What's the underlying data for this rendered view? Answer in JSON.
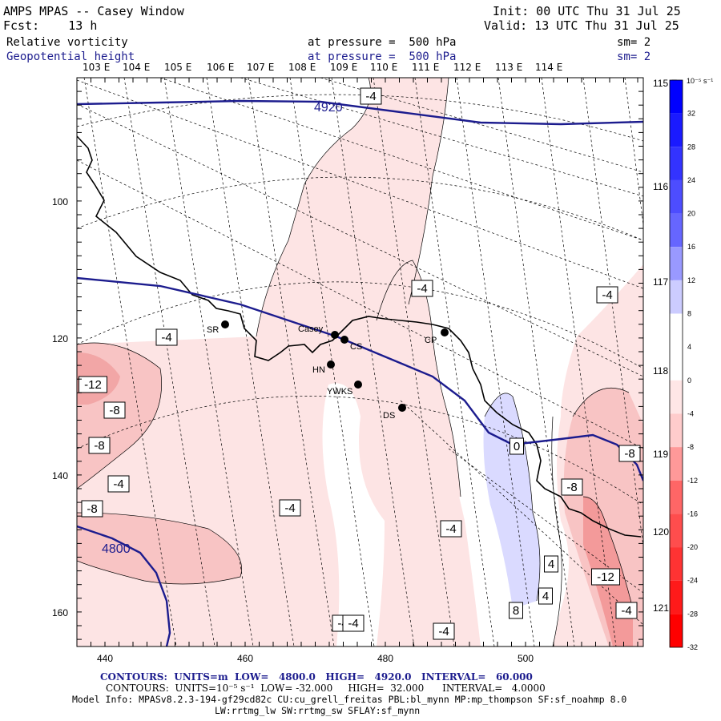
{
  "header": {
    "title": "AMPS MPAS -- Casey Window",
    "forecast": "Fcst:    13 h",
    "init": "Init: 00 UTC Thu 31 Jul 25",
    "valid": "Valid: 13 UTC Thu 31 Jul 25",
    "field1_name": "Relative vorticity",
    "field1_level": "at pressure =  500 hPa",
    "field1_smooth": "sm= 2",
    "field2_name": "Geopotential height",
    "field2_level": "at pressure =  500 hPa",
    "field2_smooth": "sm= 2"
  },
  "top_lon_labels": [
    "103 E",
    "104 E",
    "105 E",
    "106 E",
    "107 E",
    "108 E",
    "109 E",
    "110 E",
    "111 E",
    "112 E",
    "113 E",
    "114 E"
  ],
  "right_lon_labels": [
    "115 E",
    "116 E",
    "117 E",
    "118 E",
    "119 E",
    "120 E",
    "121 E"
  ],
  "x_axis_ticks": [
    "440",
    "460",
    "480",
    "500"
  ],
  "y_axis_ticks": [
    "100",
    "120",
    "140",
    "160"
  ],
  "colorbar": {
    "unit": "10⁻⁵ s⁻¹",
    "labels": [
      "32",
      "28",
      "24",
      "20",
      "16",
      "12",
      "8",
      "4",
      "0",
      "-4",
      "-8",
      "-12",
      "-16",
      "-20",
      "-24",
      "-28",
      "-32"
    ],
    "colors": [
      "#0000ff",
      "#1a1aff",
      "#3333ff",
      "#4d4dff",
      "#6666ff",
      "#9999ff",
      "#ccccff",
      "#ffffff",
      "#ffffff",
      "#ffe6e6",
      "#ffcccc",
      "#ff9999",
      "#ff6666",
      "#ff4d4d",
      "#ff3333",
      "#ff1a1a",
      "#ff0000"
    ]
  },
  "height_labels": [
    "4920",
    "4800"
  ],
  "vort_labels": [
    "-4",
    "-4",
    "-4",
    "-4",
    "-12",
    "-8",
    "-8",
    "-4",
    "-8",
    "-4",
    "-4",
    "-4",
    "0",
    "-8",
    "-8",
    "4",
    "4",
    "-12",
    "-4",
    "8",
    "-4",
    "-4"
  ],
  "stations": [
    {
      "name": "SR"
    },
    {
      "name": "Casey"
    },
    {
      "name": "CS"
    },
    {
      "name": "HN"
    },
    {
      "name": "YWKS"
    },
    {
      "name": "DS"
    },
    {
      "name": "CP"
    }
  ],
  "footer": {
    "line1_prefix": "CONTOURS:  UNITS=m  LOW=   4800.0",
    "line1_high": "HIGH=   4920.0",
    "line1_interval": "INTERVAL=   60.000",
    "line2_prefix": "CONTOURS:  UNITS=10⁻⁵ s⁻¹  LOW= -32.000",
    "line2_high": "HIGH=  32.000",
    "line2_interval": "INTERVAL=   4.0000",
    "line3": "Model Info: MPASv8.2.3-194-gf29cd82c CU:cu_grell_freitas PBL:bl_mynn MP:mp_thompson SF:sf_noahmp 8.0",
    "line4": "LW:rrtmg_lw SW:rrtmg_sw SFLAY:sf_mynn"
  }
}
